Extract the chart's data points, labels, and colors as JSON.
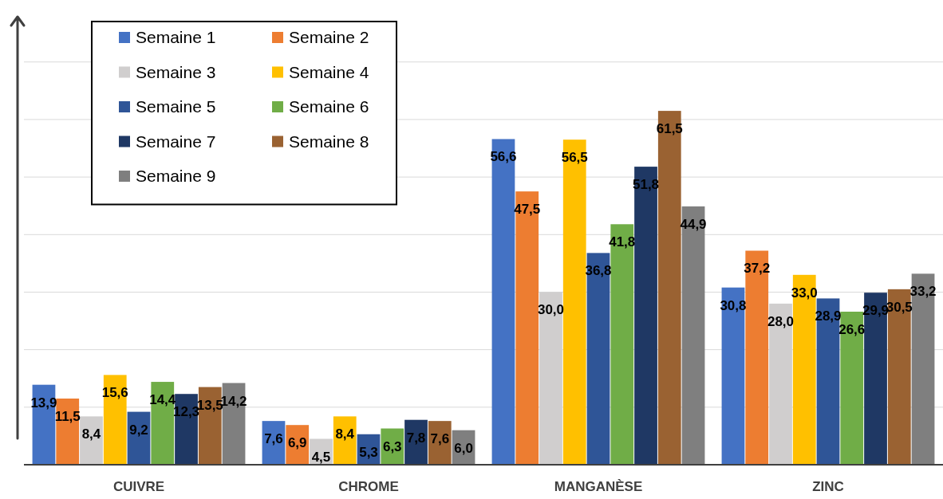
{
  "chart_data": {
    "type": "bar",
    "categories": [
      "CUIVRE",
      "CHROME",
      "MANGANÈSE",
      "ZINC"
    ],
    "series": [
      {
        "name": "Semaine 1",
        "color": "#4472c4",
        "values": [
          13.9,
          7.6,
          56.6,
          30.8
        ],
        "value_labels": [
          "13,9",
          "7,6",
          "56,6",
          "30,8"
        ]
      },
      {
        "name": "Semaine 2",
        "color": "#ed7d31",
        "values": [
          11.5,
          6.9,
          47.5,
          37.2
        ],
        "value_labels": [
          "11,5",
          "6,9",
          "47,5",
          "37,2"
        ]
      },
      {
        "name": "Semaine 3",
        "color": "#d0cece",
        "values": [
          8.4,
          4.5,
          30.0,
          28.0
        ],
        "value_labels": [
          "8,4",
          "4,5",
          "30,0",
          "28,0"
        ]
      },
      {
        "name": "Semaine 4",
        "color": "#ffc000",
        "values": [
          15.6,
          8.4,
          56.5,
          33.0
        ],
        "value_labels": [
          "15,6",
          "8,4",
          "56,5",
          "33,0"
        ]
      },
      {
        "name": "Semaine 5",
        "color": "#2f5597",
        "values": [
          9.2,
          5.3,
          36.8,
          28.9
        ],
        "value_labels": [
          "9,2",
          "5,3",
          "36,8",
          "28,9"
        ]
      },
      {
        "name": "Semaine 6",
        "color": "#70ad47",
        "values": [
          14.4,
          6.3,
          41.8,
          26.6
        ],
        "value_labels": [
          "14,4",
          "6,3",
          "41,8",
          "26,6"
        ]
      },
      {
        "name": "Semaine 7",
        "color": "#1f3864",
        "values": [
          12.3,
          7.8,
          51.8,
          29.9
        ],
        "value_labels": [
          "12,3",
          "7,8",
          "51,8",
          "29,9"
        ]
      },
      {
        "name": "Semaine 8",
        "color": "#9a6232",
        "values": [
          13.5,
          7.6,
          61.5,
          30.5
        ],
        "value_labels": [
          "13,5",
          "7,6",
          "61,5",
          "30,5"
        ]
      },
      {
        "name": "Semaine 9",
        "color": "#7f7f7f",
        "values": [
          14.2,
          6.0,
          44.9,
          33.2
        ],
        "value_labels": [
          "14,2",
          "6,0",
          "44,9",
          "33,2"
        ]
      }
    ],
    "ylim": [
      0,
      78
    ],
    "yticks": [
      {
        "value": 10,
        "label": null
      },
      {
        "value": 20,
        "label": null
      },
      {
        "value": 30,
        "label": null
      },
      {
        "value": 40,
        "label": null
      },
      {
        "value": 50,
        "label": null
      },
      {
        "value": 60,
        "label": null
      },
      {
        "value": 70,
        "label": null
      }
    ],
    "grid": "y",
    "legend": "top left",
    "tick_labels": "x"
  }
}
